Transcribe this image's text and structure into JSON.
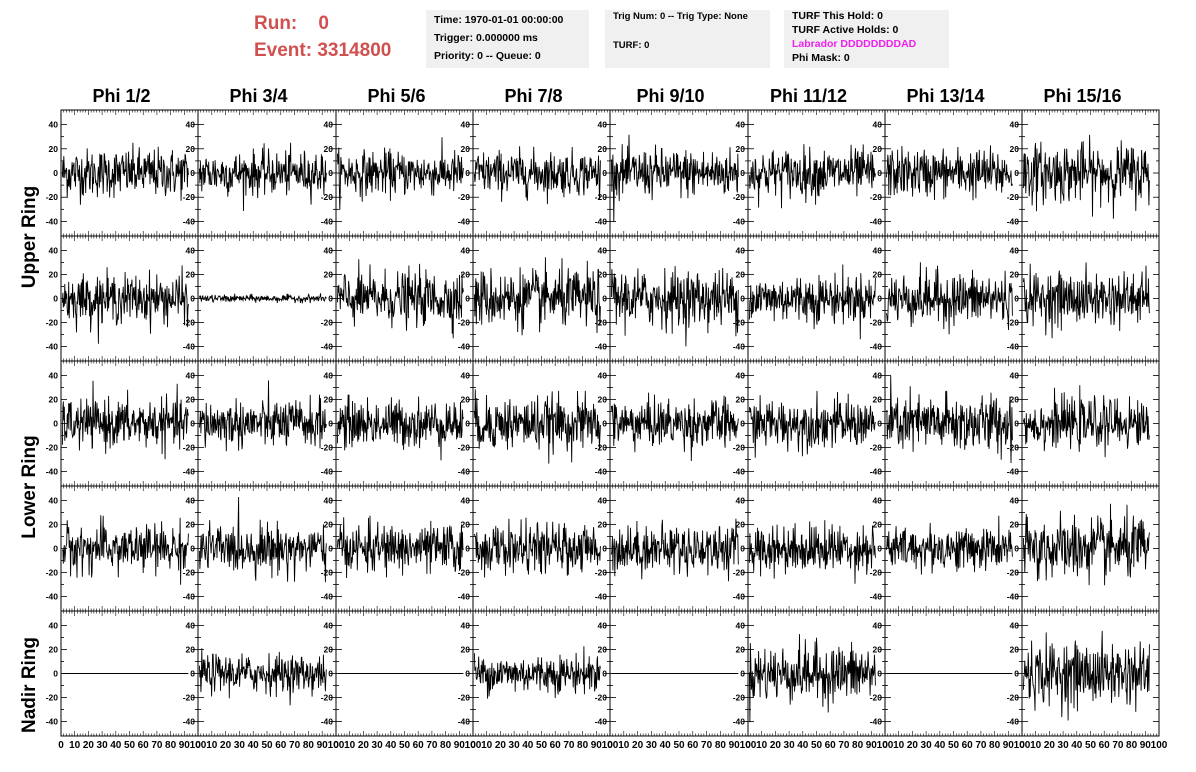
{
  "run": {
    "run_label": "Run:",
    "run_value": "0",
    "event_label": "Event:",
    "event_value": "3314800"
  },
  "header": {
    "time": "Time: 1970-01-01 00:00:00",
    "trigger": "Trigger: 0.000000 ms",
    "priority": "Priority: 0 -- Queue: 0",
    "trig_num": "Trig Num: 0 -- Trig Type: None",
    "turf": "TURF: 0",
    "turf_this_hold": "TURF This Hold: 0",
    "turf_active_holds": "TURF Active Holds: 0",
    "labrador": "Labrador DDDDDDDDAD",
    "phi_mask": "Phi Mask: 0"
  },
  "colors": {
    "run_text": "#d05050",
    "labrador_text": "#ee22ee",
    "info_bg": "#f0f0f0",
    "trace": "#000000"
  },
  "chart_data": {
    "type": "line",
    "columns": [
      "Phi 1/2",
      "Phi 3/4",
      "Phi 5/6",
      "Phi 7/8",
      "Phi 9/10",
      "Phi 11/12",
      "Phi 13/14",
      "Phi 15/16"
    ],
    "rows": [
      "Upper Ring",
      "",
      "Lower Ring",
      "",
      "Nadir Ring"
    ],
    "xlim": [
      0,
      100
    ],
    "ylim": [
      -52,
      52
    ],
    "x_tick_labels": [
      "0",
      "10",
      "20",
      "30",
      "40",
      "50",
      "60",
      "70",
      "80",
      "90",
      "100"
    ],
    "y_tick_labels": [
      "-40",
      "-20",
      "0",
      "20",
      "40"
    ],
    "trace_samples": 260,
    "amplitude_rms": [
      [
        10,
        9,
        9,
        9,
        10,
        10,
        10,
        12
      ],
      [
        10,
        1.5,
        11,
        12,
        12,
        10,
        11,
        11
      ],
      [
        10,
        10,
        10,
        11,
        10,
        10,
        12,
        10
      ],
      [
        10,
        10,
        10,
        10,
        10,
        10,
        9,
        13
      ],
      [
        0,
        8,
        0,
        8,
        0,
        12,
        0,
        13
      ]
    ]
  }
}
